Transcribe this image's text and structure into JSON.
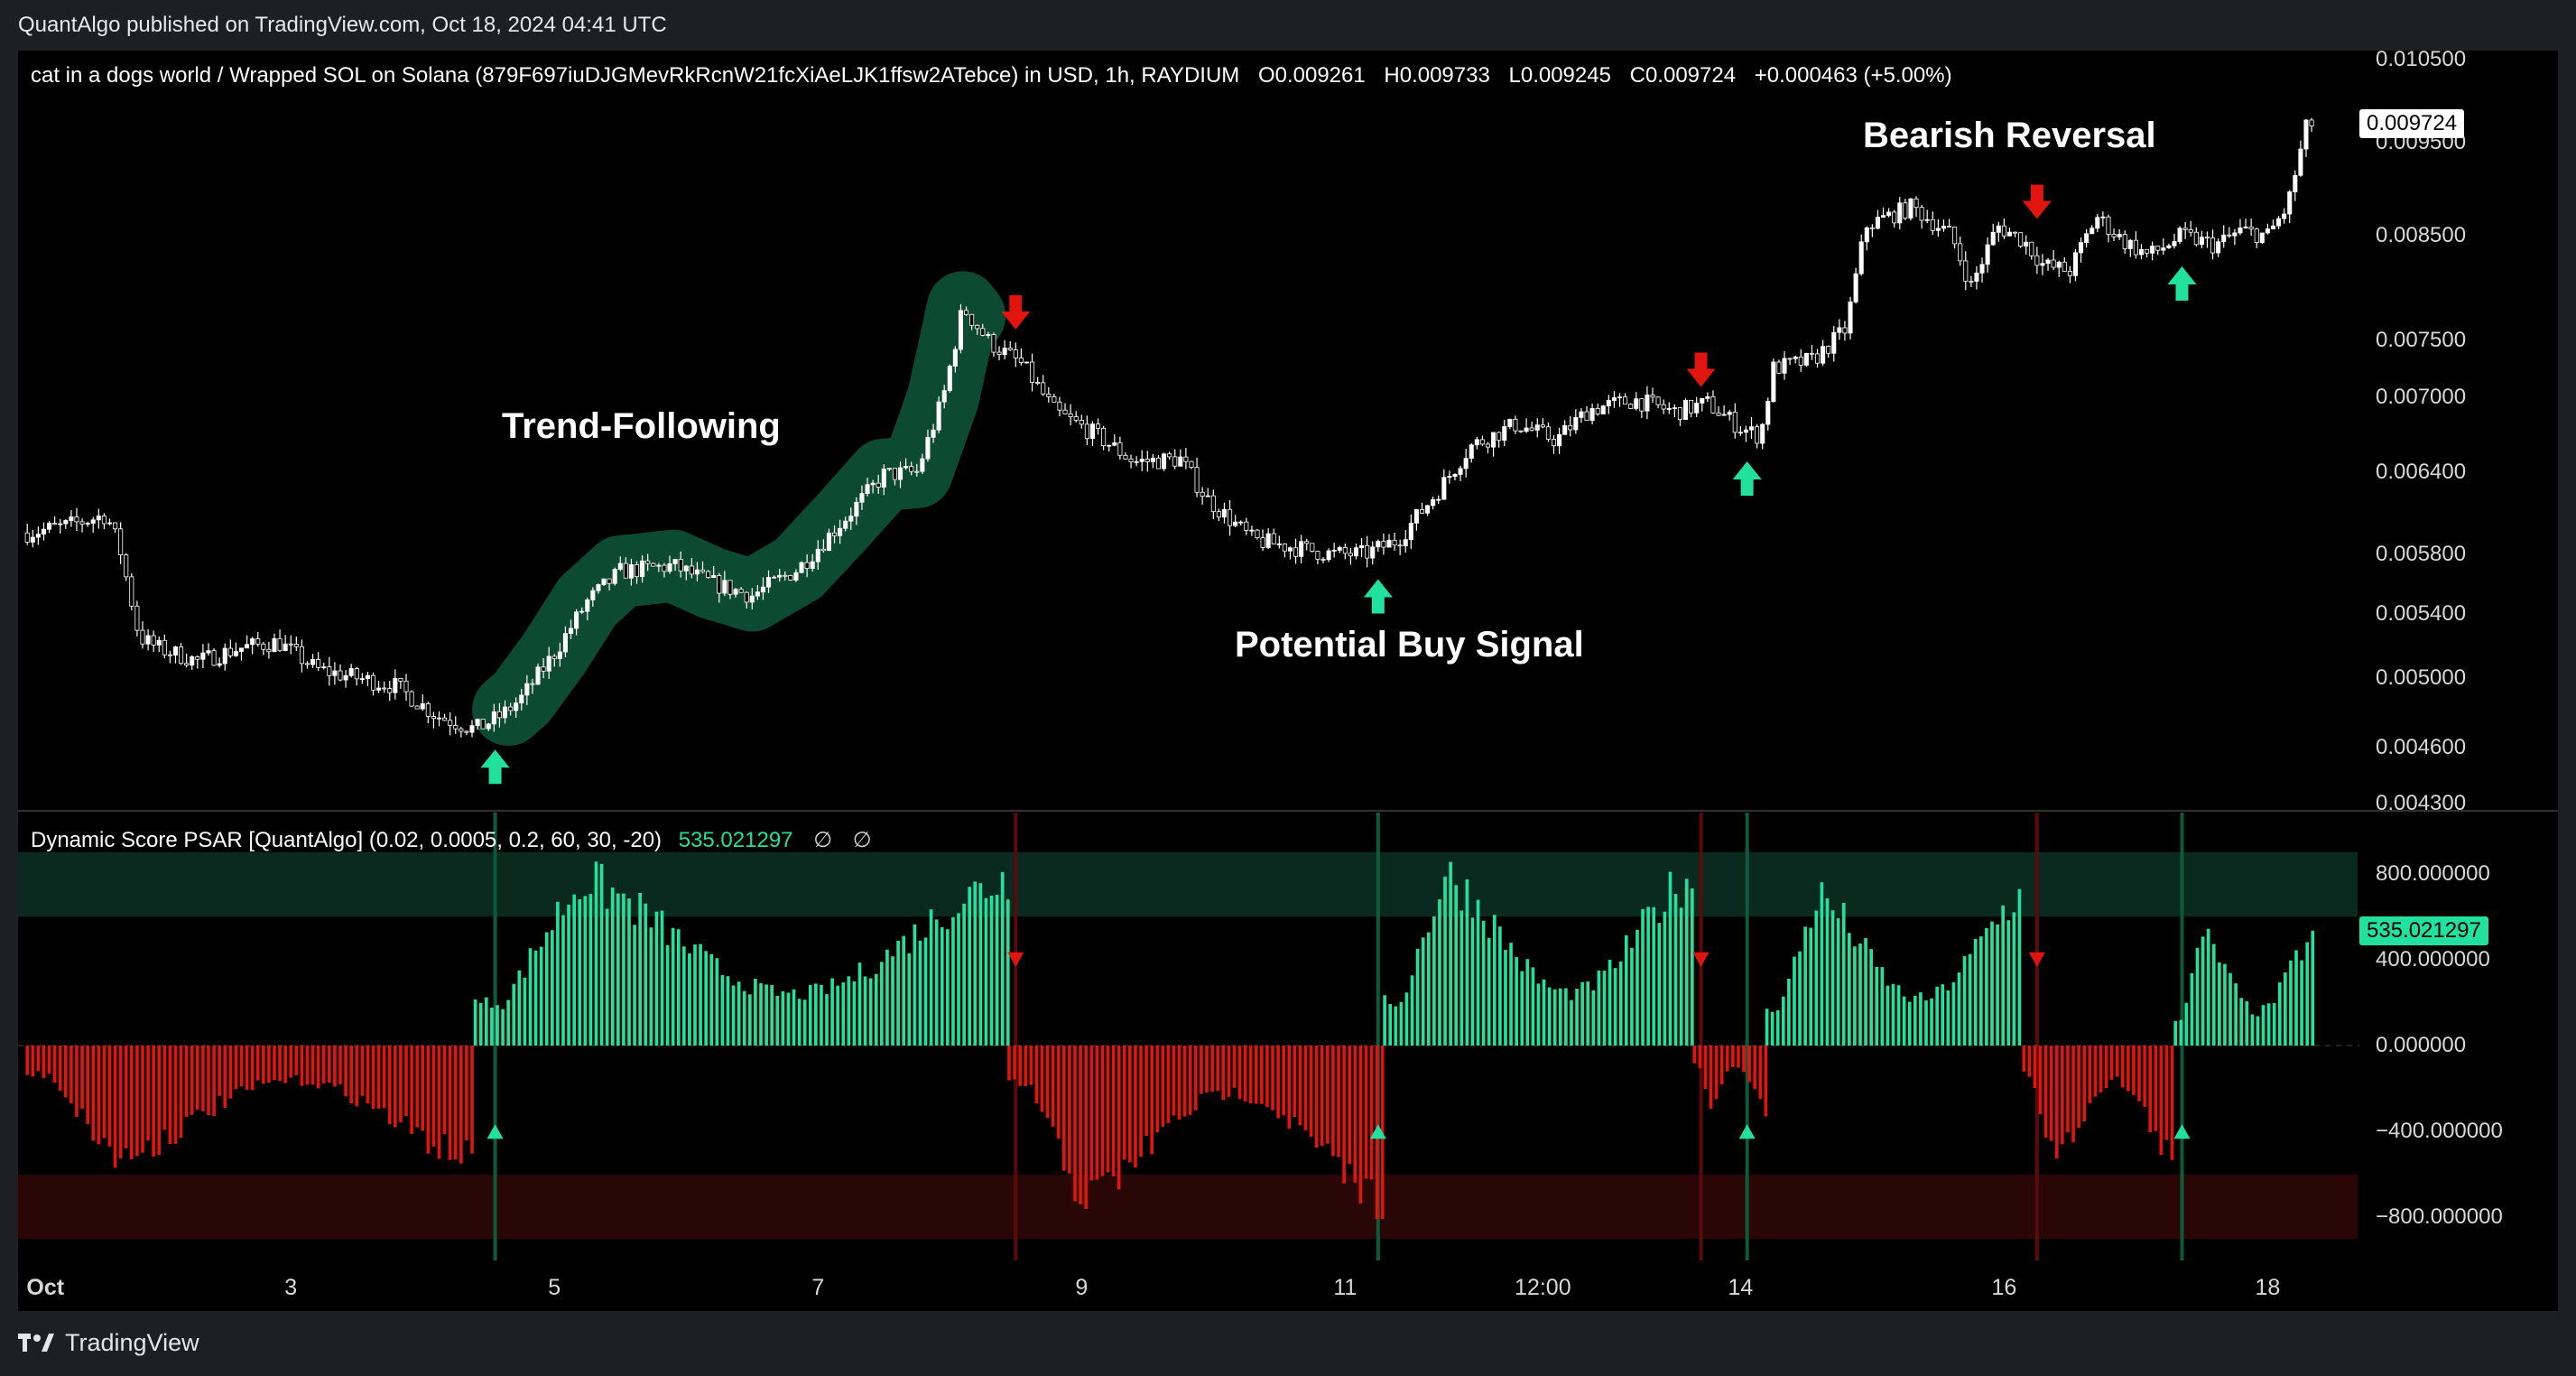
{
  "header": {
    "publisher": "QuantAlgo published on TradingView.com, Oct 18, 2024 04:41 UTC",
    "symbol": "cat in a dogs world / Wrapped SOL on Solana (879F697iuDJGMevRkRcnW21fcXiAeLJK1ffsw2ATebce) in USD, 1h, RAYDIUM",
    "open": "O0.009261",
    "high": "H0.009733",
    "low": "L0.009245",
    "close": "C0.009724",
    "change": "+0.000463 (+5.00%)"
  },
  "indicator": {
    "name": "Dynamic Score PSAR [QuantAlgo] (0.02, 0.0005, 0.2, 60, 30, -20)",
    "value": "535.021297",
    "na1": "∅",
    "na2": "∅"
  },
  "annotations": {
    "trend": "Trend-Following",
    "buy": "Potential Buy Signal",
    "reversal": "Bearish Reversal"
  },
  "footer": {
    "brand": "TradingView"
  },
  "colors": {
    "bull": "#22e0a0",
    "bear": "#e0150f",
    "highlight": "#0d4a33",
    "candle": "#ffffff"
  },
  "chart_data": [
    {
      "type": "candlestick",
      "title": "cat in a dogs world / Wrapped SOL on Solana",
      "price_scale": "log",
      "ylim": [
        0.0043,
        0.0105
      ],
      "y_ticks": [
        "0.010500",
        "0.009500",
        "0.008500",
        "0.007500",
        "0.007000",
        "0.006400",
        "0.005800",
        "0.005400",
        "0.005000",
        "0.004600",
        "0.004300"
      ],
      "last_price": "0.009724",
      "x_ticks": [
        {
          "label": "Oct",
          "day": 1
        },
        {
          "label": "3",
          "day": 3
        },
        {
          "label": "5",
          "day": 5
        },
        {
          "label": "7",
          "day": 7
        },
        {
          "label": "9",
          "day": 9
        },
        {
          "label": "11",
          "day": 11
        },
        {
          "label": "12:00",
          "day": 12.5
        },
        {
          "label": "14",
          "day": 14
        },
        {
          "label": "16",
          "day": 16
        },
        {
          "label": "18",
          "day": 18
        }
      ],
      "close_path": [
        [
          1.0,
          0.00595
        ],
        [
          1.3,
          0.006
        ],
        [
          1.6,
          0.00608
        ],
        [
          1.7,
          0.00585
        ],
        [
          1.85,
          0.00525
        ],
        [
          2.0,
          0.00518
        ],
        [
          2.3,
          0.0051
        ],
        [
          2.6,
          0.00518
        ],
        [
          2.9,
          0.00522
        ],
        [
          3.2,
          0.00505
        ],
        [
          3.5,
          0.005
        ],
        [
          3.8,
          0.00495
        ],
        [
          4.1,
          0.00478
        ],
        [
          4.4,
          0.0047
        ],
        [
          4.6,
          0.00478
        ],
        [
          4.75,
          0.00488
        ],
        [
          5.0,
          0.00515
        ],
        [
          5.25,
          0.00548
        ],
        [
          5.5,
          0.00568
        ],
        [
          5.9,
          0.00572
        ],
        [
          6.2,
          0.0056
        ],
        [
          6.5,
          0.00552
        ],
        [
          6.85,
          0.0057
        ],
        [
          7.2,
          0.00605
        ],
        [
          7.5,
          0.00638
        ],
        [
          7.75,
          0.0064
        ],
        [
          7.95,
          0.007
        ],
        [
          8.1,
          0.0078
        ],
        [
          8.3,
          0.00748
        ],
        [
          8.55,
          0.00728
        ],
        [
          8.8,
          0.00688
        ],
        [
          9.1,
          0.0067
        ],
        [
          9.4,
          0.00648
        ],
        [
          9.75,
          0.0065
        ],
        [
          9.95,
          0.0062
        ],
        [
          10.3,
          0.0059
        ],
        [
          10.6,
          0.00585
        ],
        [
          10.9,
          0.0058
        ],
        [
          11.15,
          0.0058
        ],
        [
          11.4,
          0.0059
        ],
        [
          11.7,
          0.00625
        ],
        [
          11.95,
          0.0066
        ],
        [
          12.3,
          0.00678
        ],
        [
          12.6,
          0.00665
        ],
        [
          12.85,
          0.0069
        ],
        [
          13.2,
          0.00698
        ],
        [
          13.5,
          0.00688
        ],
        [
          13.75,
          0.00695
        ],
        [
          14.0,
          0.00675
        ],
        [
          14.15,
          0.00668
        ],
        [
          14.25,
          0.00725
        ],
        [
          14.55,
          0.00732
        ],
        [
          14.8,
          0.0076
        ],
        [
          14.95,
          0.0086
        ],
        [
          15.3,
          0.0088
        ],
        [
          15.6,
          0.0085
        ],
        [
          15.75,
          0.008
        ],
        [
          15.95,
          0.0086
        ],
        [
          16.15,
          0.00845
        ],
        [
          16.3,
          0.0082
        ],
        [
          16.5,
          0.00815
        ],
        [
          16.7,
          0.0087
        ],
        [
          16.9,
          0.00845
        ],
        [
          17.1,
          0.0083
        ],
        [
          17.35,
          0.0085
        ],
        [
          17.6,
          0.0084
        ],
        [
          17.8,
          0.00855
        ],
        [
          18.0,
          0.0085
        ],
        [
          18.15,
          0.0088
        ],
        [
          18.3,
          0.00972
        ]
      ],
      "buy_signals": [
        4.55,
        11.25,
        14.05,
        17.35
      ],
      "sell_signals": [
        8.5,
        13.7,
        16.25
      ]
    },
    {
      "type": "bar",
      "title": "Dynamic Score PSAR [QuantAlgo]",
      "ylim": [
        -1000,
        1000
      ],
      "y_ticks": [
        "800.000000",
        "400.000000",
        "0.000000",
        "−400.000000",
        "−800.000000"
      ],
      "last_value": "535.021297",
      "bands": [
        {
          "range": [
            600,
            900
          ],
          "color": "bull"
        },
        {
          "range": [
            -900,
            -600
          ],
          "color": "bear"
        }
      ],
      "series": [
        {
          "sign": "bear",
          "from": 1.0,
          "to": 4.4,
          "peak": -560
        },
        {
          "sign": "bull",
          "from": 4.4,
          "to": 8.45,
          "peak": 820
        },
        {
          "sign": "bear",
          "from": 8.45,
          "to": 11.3,
          "peak": -760
        },
        {
          "sign": "bull",
          "from": 11.3,
          "to": 13.65,
          "peak": 840
        },
        {
          "sign": "bear",
          "from": 13.65,
          "to": 14.2,
          "peak": -320
        },
        {
          "sign": "bull",
          "from": 14.2,
          "to": 16.15,
          "peak": 740
        },
        {
          "sign": "bear",
          "from": 16.15,
          "to": 17.3,
          "peak": -560
        },
        {
          "sign": "bull",
          "from": 17.3,
          "to": 18.35,
          "peak": 540
        }
      ]
    }
  ]
}
